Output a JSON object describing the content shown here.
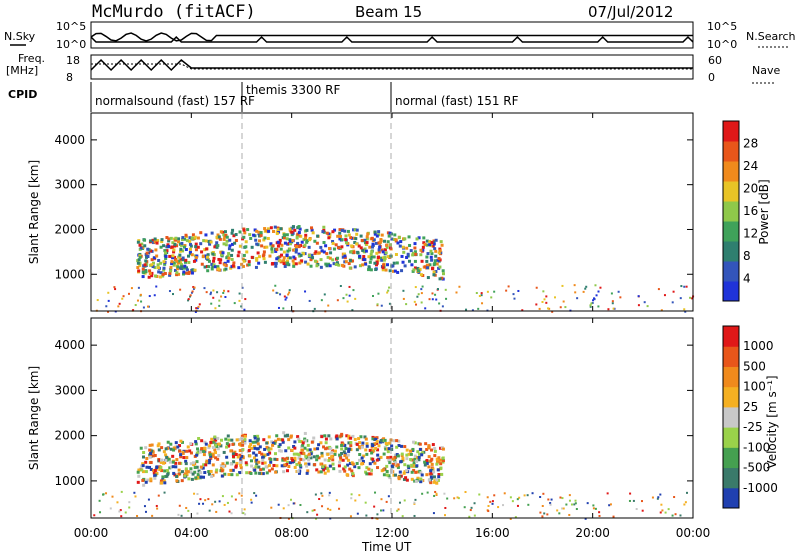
{
  "header": {
    "station": "McMurdo (fitACF)",
    "beam": "Beam 15",
    "date": "07/Jul/2012"
  },
  "top_panels": {
    "nsky_label": "N.Sky",
    "nsearch_label": "N.Search",
    "noise_ticks": [
      "10^5",
      "10^0"
    ],
    "freq_label": "Freq.",
    "freq_unit": "[MHz]",
    "freq_ticks": [
      "18",
      "8"
    ],
    "nave_label": "Nave",
    "nave_ticks": [
      "60",
      "0"
    ],
    "cpid_label": "CPID",
    "cpid_segments": [
      {
        "label": "normalsound (fast) 157 RF"
      },
      {
        "label": "themis 3300 RF"
      },
      {
        "label": "normal (fast) 151 RF"
      }
    ]
  },
  "chart_data": [
    {
      "type": "heatmap",
      "title": "",
      "xlabel": "Time UT",
      "ylabel": "Slant Range [km]",
      "x_ticks": [
        "00:00",
        "04:00",
        "08:00",
        "12:00",
        "16:00",
        "20:00",
        "00:00"
      ],
      "x_range_hours": [
        0,
        24
      ],
      "y_ticks": [
        "1000",
        "2000",
        "3000",
        "4000"
      ],
      "ylim": [
        180,
        4600
      ],
      "colorbar": {
        "label": "Power [dB]",
        "ticks": [
          "4",
          "8",
          "12",
          "16",
          "20",
          "24",
          "28"
        ],
        "colors": [
          "#1f33d9",
          "#3355bb",
          "#2f7f6f",
          "#3fa25a",
          "#8fc84a",
          "#e8c426",
          "#f08a1c",
          "#e8561a",
          "#e01818"
        ]
      },
      "regions": [
        {
          "t0": 1.8,
          "t1": 14.0,
          "r0": 800,
          "r1": 1900,
          "level": "echo band"
        }
      ]
    },
    {
      "type": "heatmap",
      "title": "",
      "xlabel": "Time UT",
      "ylabel": "Slant Range [km]",
      "x_ticks": [
        "00:00",
        "04:00",
        "08:00",
        "12:00",
        "16:00",
        "20:00",
        "00:00"
      ],
      "x_range_hours": [
        0,
        24
      ],
      "y_ticks": [
        "1000",
        "2000",
        "3000",
        "4000"
      ],
      "ylim": [
        180,
        4600
      ],
      "colorbar": {
        "label": "Velocity [m s⁻¹]",
        "ticks": [
          "1000",
          "500",
          "100",
          "25",
          "-25",
          "-100",
          "-500",
          "-1000"
        ],
        "colors": [
          "#2040b0",
          "#3a7a6a",
          "#45a050",
          "#9ad24a",
          "#c8c8c8",
          "#f5b022",
          "#f08a1c",
          "#e8561a",
          "#e01818"
        ]
      }
    }
  ]
}
